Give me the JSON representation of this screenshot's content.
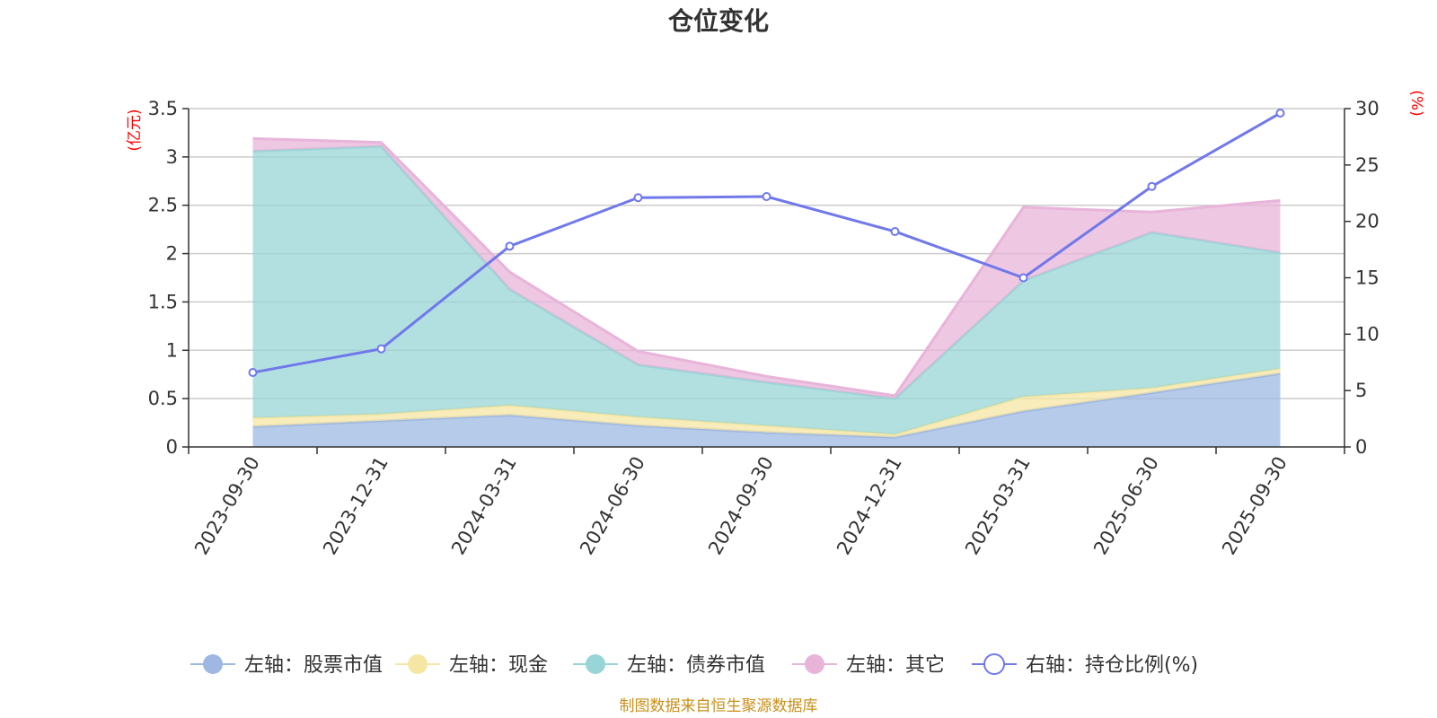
{
  "chart_data": {
    "type": "area",
    "title": "仓位变化",
    "categories": [
      "2023-09-30",
      "2023-12-31",
      "2024-03-31",
      "2024-06-30",
      "2024-09-30",
      "2024-12-31",
      "2025-03-31",
      "2025-06-30",
      "2025-09-30"
    ],
    "y_left": {
      "unit": "(亿元)",
      "ylim": [
        0,
        3.5
      ],
      "ticks": [
        "0",
        "0.5",
        "1",
        "1.5",
        "2",
        "2.5",
        "3",
        "3.5"
      ]
    },
    "y_right": {
      "unit": "(%)",
      "ylim": [
        0,
        30
      ],
      "ticks": [
        "0",
        "5",
        "10",
        "15",
        "20",
        "25",
        "30"
      ]
    },
    "stacked_series": [
      {
        "name": "左轴：股票市值",
        "color": "#9eb8e2",
        "values": [
          0.21,
          0.27,
          0.33,
          0.22,
          0.15,
          0.1,
          0.37,
          0.56,
          0.76
        ]
      },
      {
        "name": "左轴：现金",
        "color": "#f5e6a3",
        "values": [
          0.09,
          0.07,
          0.1,
          0.09,
          0.07,
          0.03,
          0.15,
          0.05,
          0.05
        ]
      },
      {
        "name": "左轴：债券市值",
        "color": "#98d5d6",
        "values": [
          2.76,
          2.77,
          1.2,
          0.54,
          0.45,
          0.37,
          1.2,
          1.61,
          1.2
        ]
      },
      {
        "name": "左轴：其它",
        "color": "#e8b4da",
        "values": [
          0.13,
          0.04,
          0.18,
          0.14,
          0.06,
          0.03,
          0.76,
          0.21,
          0.54
        ]
      }
    ],
    "line_series": {
      "name": "右轴：持仓比例(%)",
      "color": "#7078ea",
      "values": [
        6.6,
        8.7,
        17.8,
        22.1,
        22.2,
        19.1,
        15.0,
        23.1,
        29.6
      ]
    },
    "source_note": "制图数据来自恒生聚源数据库"
  }
}
